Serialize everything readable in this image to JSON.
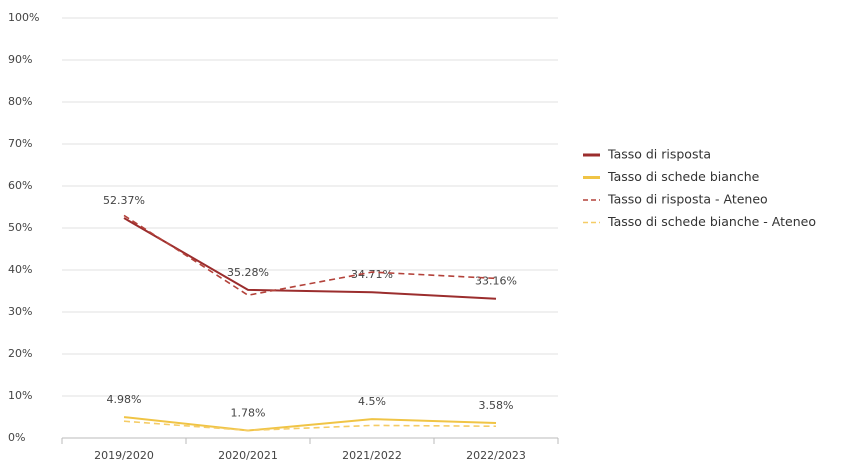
{
  "chart_data": {
    "type": "line",
    "categories": [
      "2019/2020",
      "2020/2021",
      "2021/2022",
      "2022/2023"
    ],
    "series": [
      {
        "name": "Tasso di risposta",
        "color": "#9b2d2d",
        "dashed": false,
        "values": [
          52.37,
          35.28,
          34.71,
          33.16
        ],
        "value_labels": [
          "52.37%",
          "35.28%",
          "34.71%",
          "33.16%"
        ]
      },
      {
        "name": "Tasso di schede bianche",
        "color": "#f0c445",
        "dashed": false,
        "values": [
          4.98,
          1.78,
          4.5,
          3.58
        ],
        "value_labels": [
          "4.98%",
          "1.78%",
          "4.5%",
          "3.58%"
        ]
      },
      {
        "name": "Tasso di risposta - Ateneo",
        "color": "#b3423a",
        "dashed": true,
        "values": [
          53,
          34,
          39.5,
          38
        ]
      },
      {
        "name": "Tasso di schede bianche - Ateneo",
        "color": "#f5cc66",
        "dashed": true,
        "values": [
          4,
          1.8,
          3,
          2.8
        ]
      }
    ],
    "ylim": [
      0,
      100
    ],
    "yticks": [
      {
        "value": 0,
        "label": "0%"
      },
      {
        "value": 10,
        "label": "10%"
      },
      {
        "value": 20,
        "label": "20%"
      },
      {
        "value": 30,
        "label": "30%"
      },
      {
        "value": 40,
        "label": "40%"
      },
      {
        "value": 50,
        "label": "50%"
      },
      {
        "value": 60,
        "label": "60%"
      },
      {
        "value": 70,
        "label": "70%"
      },
      {
        "value": 80,
        "label": "80%"
      },
      {
        "value": 90,
        "label": "90%"
      },
      {
        "value": 100,
        "label": "100%"
      }
    ],
    "grid": true,
    "legend": "right"
  }
}
